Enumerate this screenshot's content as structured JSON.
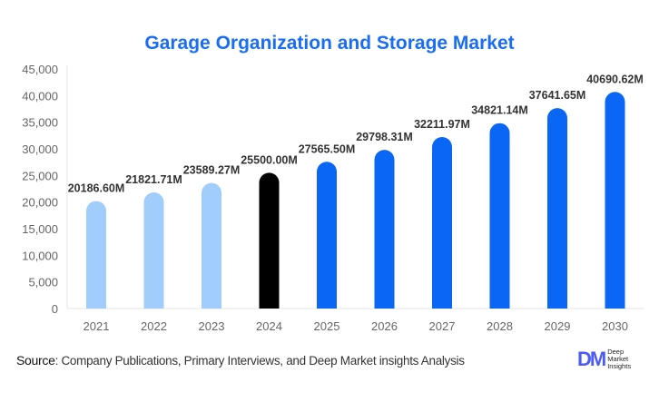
{
  "chart_data": {
    "type": "bar",
    "title": "Garage Organization and Storage Market",
    "categories": [
      "2021",
      "2022",
      "2023",
      "2024",
      "2025",
      "2026",
      "2027",
      "2028",
      "2029",
      "2030"
    ],
    "values": [
      20186.6,
      21821.71,
      23589.27,
      25500.0,
      27565.5,
      29798.31,
      32211.97,
      34821.14,
      37641.65,
      40690.62
    ],
    "data_labels": [
      "20186.60M",
      "21821.71M",
      "23589.27M",
      "25500.00M",
      "27565.50M",
      "29798.31M",
      "32211.97M",
      "34821.14M",
      "37641.65M",
      "40690.62M"
    ],
    "ylim": [
      0,
      45000
    ],
    "yticks": [
      "0",
      "5,000",
      "10,000",
      "15,000",
      "20,000",
      "25,000",
      "30,000",
      "35,000",
      "40,000",
      "45,000"
    ],
    "xlabel": "",
    "ylabel": "",
    "grid": false,
    "colors": {
      "historical": "#a0cdfb",
      "base_year": "#000000",
      "forecast": "#0a66f5",
      "title": "#1a6ef5"
    }
  },
  "footer": {
    "source_label": "Source",
    "source_text": ": Company Publications, Primary Interviews, and Deep Market insights Analysis"
  },
  "logo": {
    "mark": "DM",
    "text": [
      "Deep",
      "Market",
      "Insights"
    ]
  }
}
